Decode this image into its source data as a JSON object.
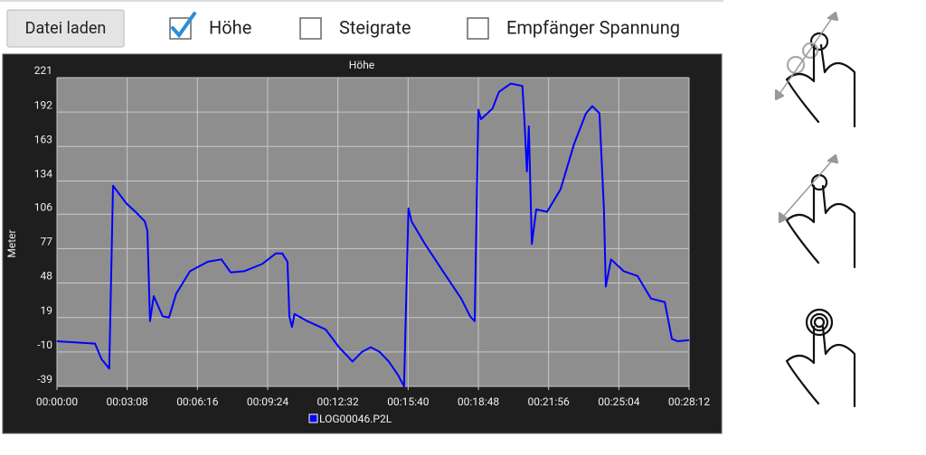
{
  "toolbar": {
    "button": "Datei laden",
    "checkboxes": [
      {
        "label": "Höhe",
        "checked": true
      },
      {
        "label": "Steigrate",
        "checked": false
      },
      {
        "label": "Empfänger Spannung",
        "checked": false
      }
    ]
  },
  "chart_data": {
    "type": "line",
    "title": "Höhe",
    "y_label": "Meter",
    "x": [
      0,
      102,
      119,
      140,
      150,
      162,
      186,
      210,
      235,
      242,
      249,
      259,
      283,
      300,
      319,
      356,
      404,
      440,
      465,
      501,
      549,
      586,
      603,
      617,
      622,
      629,
      636,
      670,
      719,
      755,
      791,
      816,
      840,
      864,
      888,
      912,
      929,
      941,
      949,
      985,
      1033,
      1082,
      1106,
      1118,
      1128,
      1135,
      1166,
      1183,
      1215,
      1246,
      1251,
      1258,
      1263,
      1271,
      1283,
      1312,
      1348,
      1384,
      1416,
      1433,
      1452,
      1464,
      1469,
      1483,
      1517,
      1554,
      1590,
      1627,
      1646,
      1662,
      1692
    ],
    "series": [
      {
        "name": "LOG00046.P2L",
        "color": "#0000ff",
        "values": [
          -1,
          -3,
          -16,
          -24,
          130,
          125,
          115,
          108,
          100,
          92,
          16,
          37,
          20,
          19,
          39,
          58,
          66,
          68,
          57,
          58,
          64,
          73,
          73,
          66,
          20,
          11,
          22,
          16,
          9,
          -6,
          -18,
          -10,
          -6,
          -10,
          -18,
          -29,
          -39,
          111,
          100,
          81,
          58,
          35,
          20,
          16,
          194,
          186,
          195,
          209,
          216,
          214,
          187,
          142,
          180,
          81,
          110,
          108,
          127,
          165,
          191,
          197,
          191,
          111,
          45,
          68,
          58,
          54,
          35,
          32,
          1,
          -1,
          0
        ]
      }
    ],
    "xlim": [
      0,
      1692
    ],
    "ylim": [
      -39,
      221
    ],
    "xticks": [
      {
        "value": 0,
        "label": "00:00:00"
      },
      {
        "value": 188,
        "label": "00:03:08"
      },
      {
        "value": 376,
        "label": "00:06:16"
      },
      {
        "value": 564,
        "label": "00:09:24"
      },
      {
        "value": 752,
        "label": "00:12:32"
      },
      {
        "value": 940,
        "label": "00:15:40"
      },
      {
        "value": 1128,
        "label": "00:18:48"
      },
      {
        "value": 1316,
        "label": "00:21:56"
      },
      {
        "value": 1504,
        "label": "00:25:04"
      },
      {
        "value": 1692,
        "label": "00:28:12"
      }
    ],
    "yticks": [
      -39,
      -10,
      19,
      48,
      77,
      106,
      134,
      163,
      192,
      221
    ],
    "grid": true
  }
}
